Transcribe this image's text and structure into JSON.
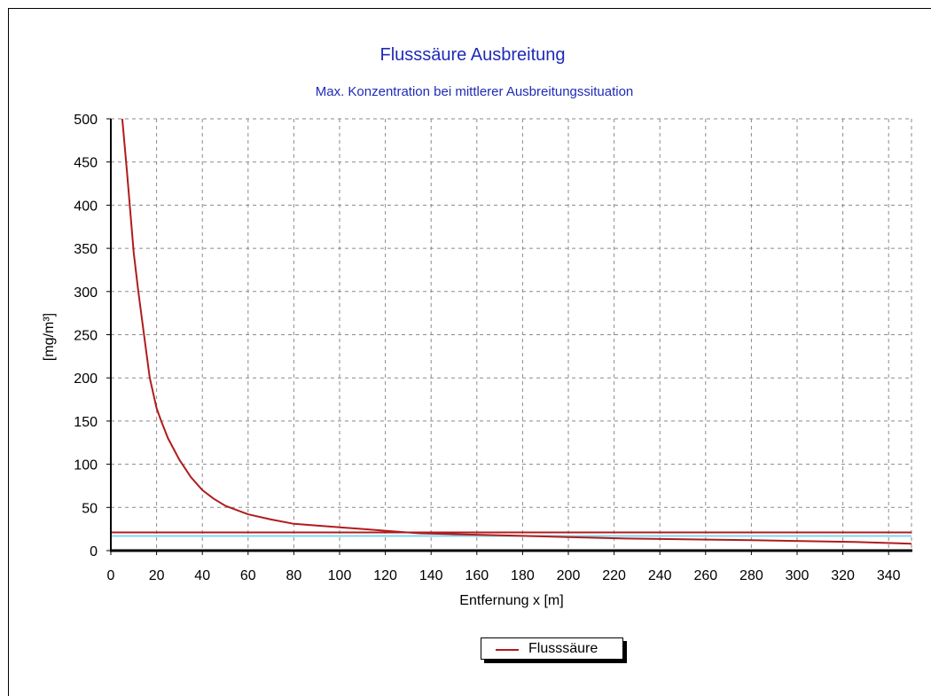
{
  "chart_data": {
    "type": "line",
    "title": "Flusssäure Ausbreitung",
    "subtitle": "Max. Konzentration bei mittlerer Ausbreitungssituation",
    "xlabel": "Entfernung x [m]",
    "ylabel": "[mg/m³]",
    "xlim": [
      0,
      350
    ],
    "ylim": [
      0,
      500
    ],
    "x_ticks": [
      0,
      20,
      40,
      60,
      80,
      100,
      120,
      140,
      160,
      180,
      200,
      220,
      240,
      260,
      280,
      300,
      320,
      340
    ],
    "y_ticks": [
      0,
      50,
      100,
      150,
      200,
      250,
      300,
      350,
      400,
      450,
      500
    ],
    "grid": true,
    "legend_position": "bottom",
    "series": [
      {
        "name": "Flusssäure",
        "color": "#b01c1c",
        "x": [
          5,
          7,
          10,
          12,
          15,
          17,
          20,
          22,
          25,
          30,
          35,
          40,
          45,
          50,
          60,
          70,
          80,
          90,
          100,
          110,
          120,
          125,
          135,
          150,
          180,
          225,
          280,
          325,
          350
        ],
        "y": [
          500,
          440,
          345,
          300,
          240,
          200,
          165,
          150,
          130,
          105,
          85,
          70,
          60,
          52,
          42,
          36,
          31,
          29,
          27,
          25,
          23,
          22,
          20,
          19,
          17,
          14,
          12,
          10,
          8
        ]
      }
    ],
    "reference_lines": [
      {
        "y": 21,
        "color": "#b01c1c"
      },
      {
        "y": 17,
        "color": "#7fd4ee"
      }
    ]
  }
}
